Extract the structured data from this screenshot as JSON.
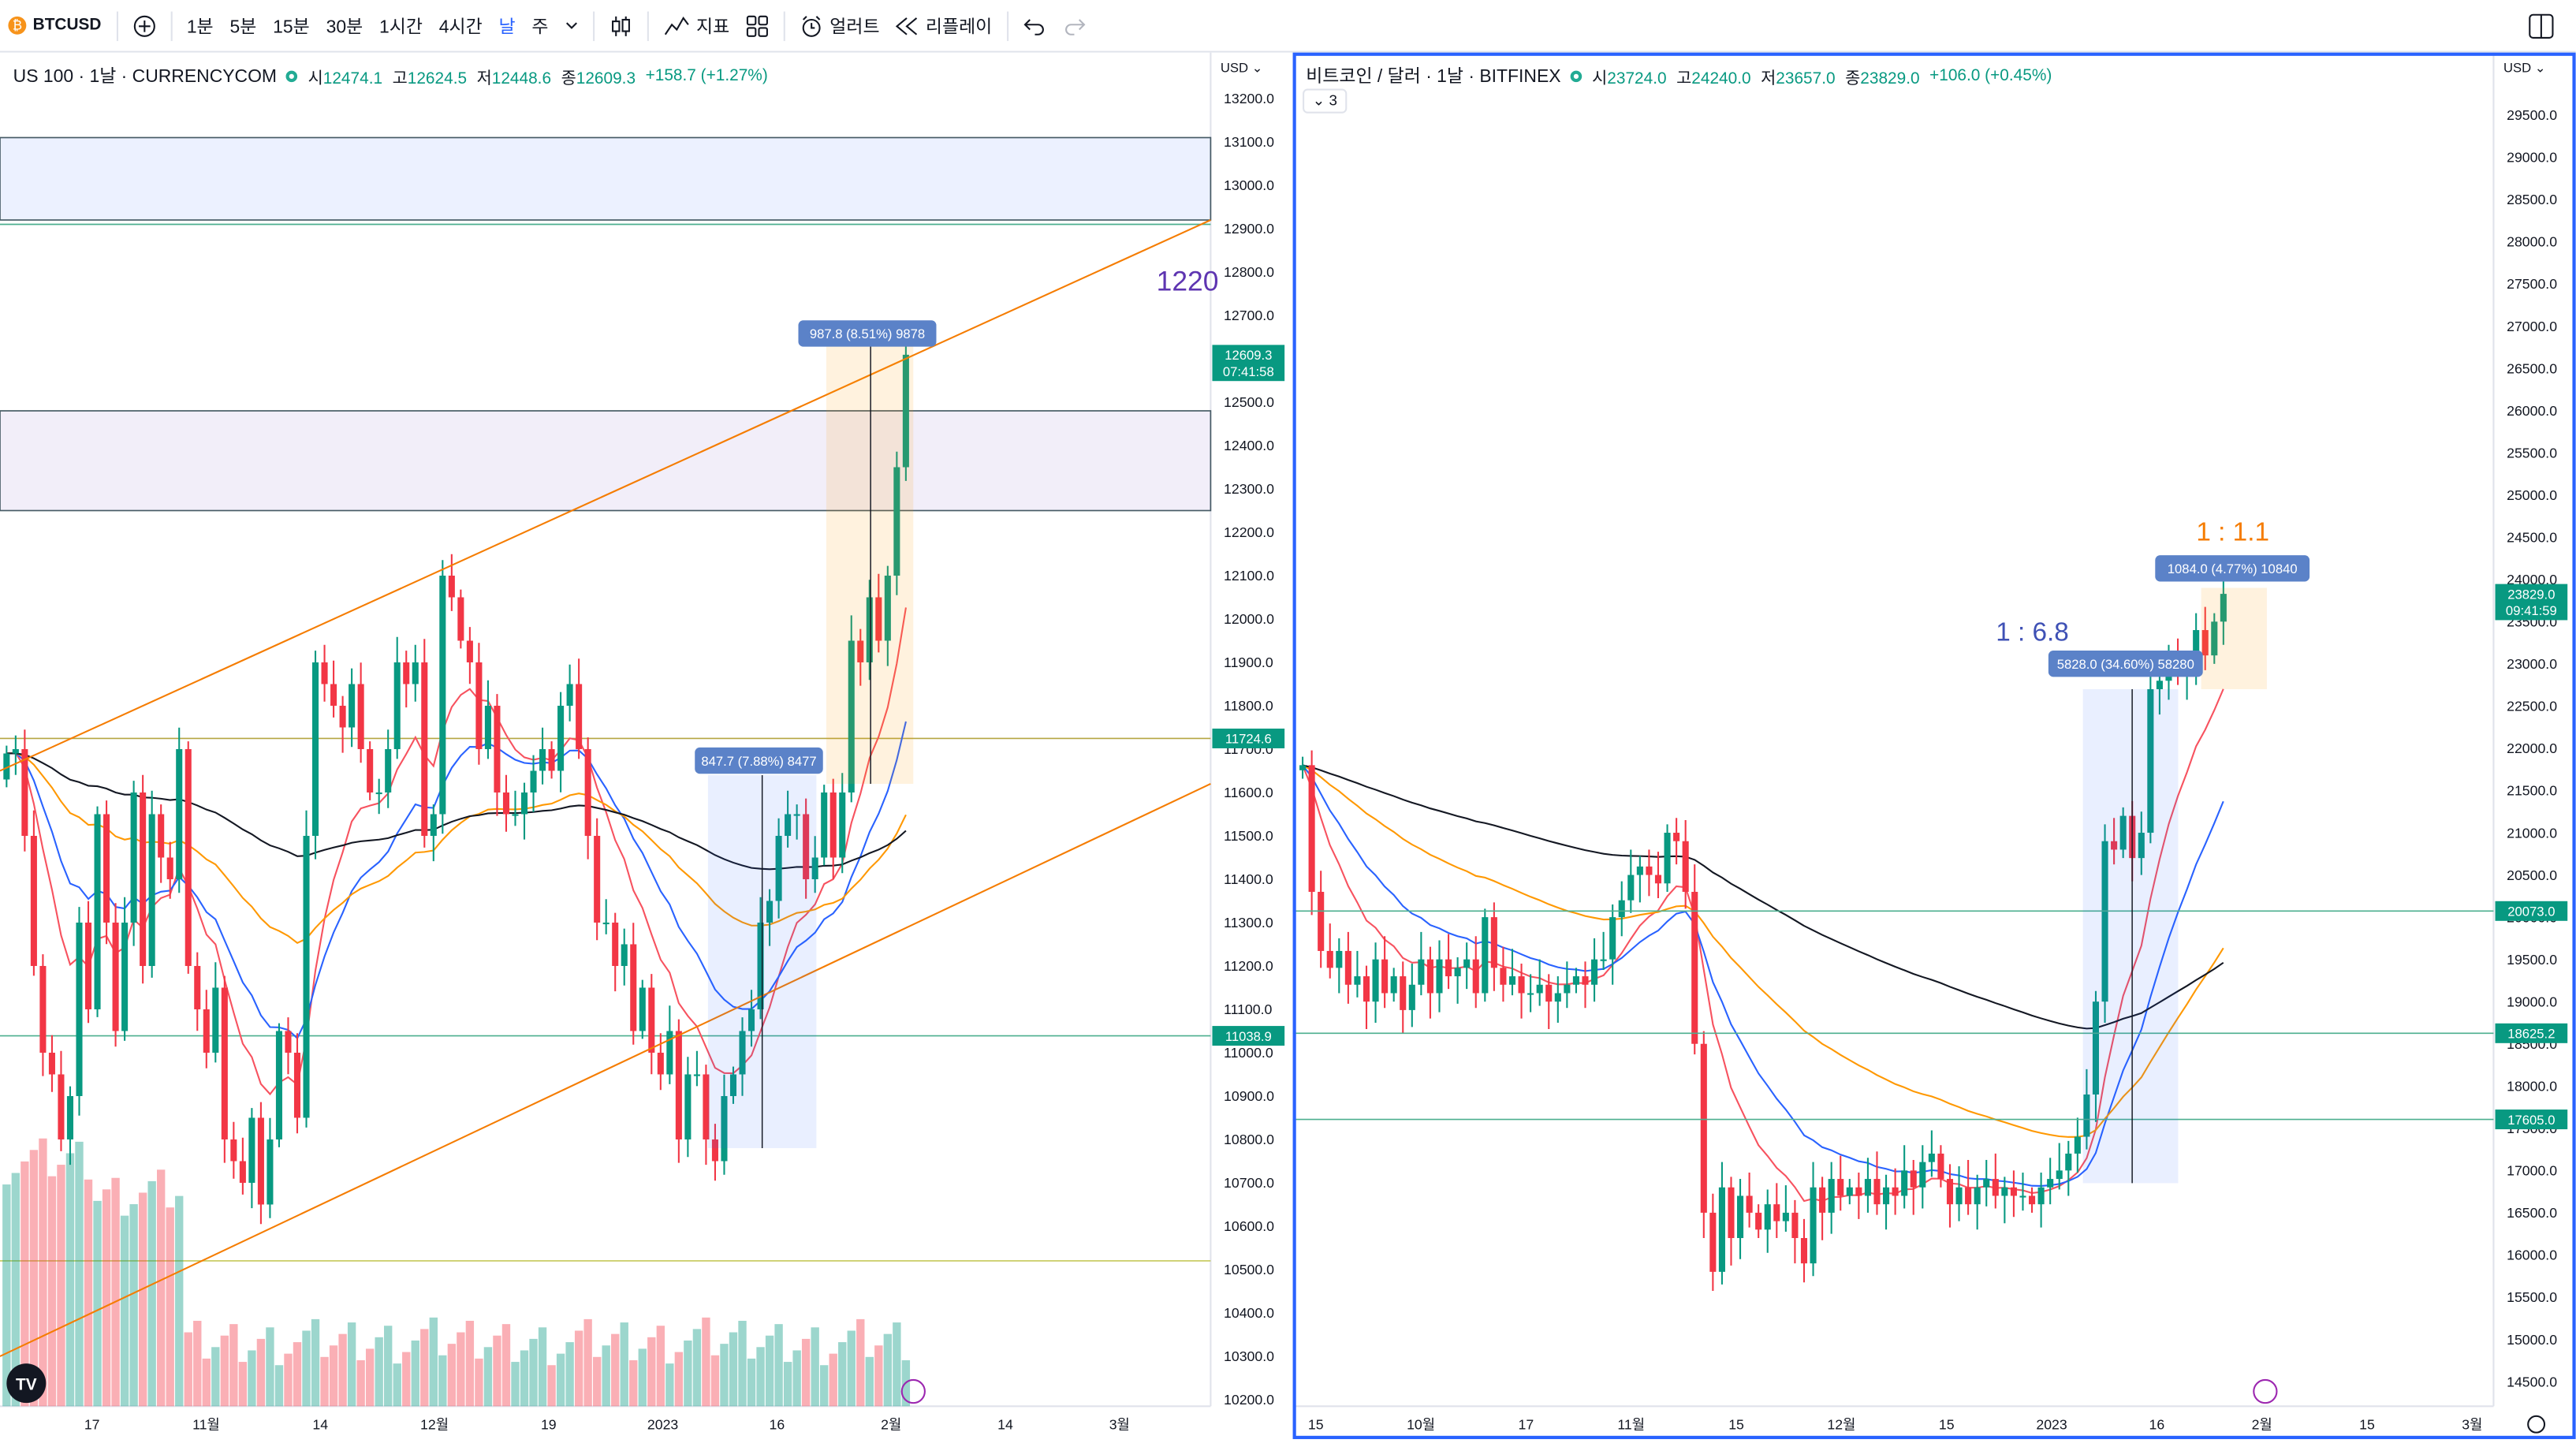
{
  "toolbar": {
    "symbol": "BTCUSD",
    "timeframes": [
      "1분",
      "5분",
      "15분",
      "30분",
      "1시간",
      "4시간",
      "날",
      "주"
    ],
    "active_timeframe": "날",
    "indicators_label": "지표",
    "alert_label": "얼러트",
    "replay_label": "리플레이"
  },
  "left": {
    "title": "US 100 · 1날 · CURRENCYCOM",
    "o_label": "시",
    "o": "12474.1",
    "h_label": "고",
    "h": "12624.5",
    "l_label": "저",
    "l": "12448.6",
    "c_label": "종",
    "c": "12609.3",
    "change": "+158.7 (+1.27%)",
    "currency": "USD",
    "big_label": "1220",
    "price_labels": [
      {
        "value": "12609.3",
        "sub": "07:41:58",
        "color": "#089981"
      },
      {
        "value": "11724.6",
        "sub": "",
        "color": "#089981"
      },
      {
        "value": "11038.9",
        "sub": "",
        "color": "#089981"
      }
    ],
    "measure_boxes": [
      "987.8 (8.51%) 9878",
      "847.7 (7.88%) 8477"
    ],
    "time_labels": [
      "17",
      "11월",
      "14",
      "12월",
      "19",
      "2023",
      "16",
      "2월",
      "14",
      "3월"
    ]
  },
  "right": {
    "title": "비트코인 / 달러 · 1날 · BITFINEX",
    "o_label": "시",
    "o": "23724.0",
    "h_label": "고",
    "h": "24240.0",
    "l_label": "저",
    "l": "23657.0",
    "c_label": "종",
    "c": "23829.0",
    "change": "+106.0 (+0.45%)",
    "currency": "USD",
    "badge": "3",
    "ratio_small": "1 : 6.8",
    "ratio_top": "1 : 1.1",
    "price_labels": [
      {
        "value": "23829.0",
        "sub": "09:41:59",
        "color": "#089981"
      },
      {
        "value": "20073.0",
        "sub": "",
        "color": "#089981"
      },
      {
        "value": "18625.2",
        "sub": "",
        "color": "#089981"
      },
      {
        "value": "17605.0",
        "sub": "",
        "color": "#089981"
      }
    ],
    "measure_boxes": [
      "5828.0 (34.60%) 58280",
      "1084.0 (4.77%) 10840"
    ],
    "time_labels": [
      "15",
      "10월",
      "17",
      "11월",
      "15",
      "12월",
      "15",
      "2023",
      "16",
      "2월",
      "15",
      "3월"
    ]
  },
  "chart_data": [
    {
      "type": "candlestick",
      "title": "US 100 · 1날 · CURRENCYCOM",
      "ylabel": "USD",
      "ylim": [
        10200,
        13200
      ],
      "y_ticks": [
        10200,
        10300,
        10400,
        10500,
        10600,
        10700,
        10800,
        10900,
        11000,
        11100,
        11200,
        11300,
        11400,
        11500,
        11600,
        11700,
        11800,
        11900,
        12000,
        12100,
        12200,
        12300,
        12400,
        12500,
        12600,
        12700,
        12800,
        12900,
        13000,
        13100,
        13200
      ],
      "x_tick_labels": [
        "17",
        "11월",
        "14",
        "12월",
        "19",
        "2023",
        "16",
        "2월",
        "14",
        "3월"
      ],
      "closes": [
        11690,
        11700,
        11500,
        11200,
        11000,
        10950,
        10800,
        10900,
        11300,
        11100,
        11550,
        11300,
        11050,
        11300,
        11600,
        11200,
        11550,
        11450,
        11400,
        11700,
        11200,
        11100,
        11000,
        11150,
        10800,
        10750,
        10700,
        10850,
        10650,
        10800,
        11050,
        11000,
        10850,
        11500,
        11900,
        11850,
        11800,
        11750,
        11850,
        11700,
        11600,
        11600,
        11700,
        11900,
        11850,
        11900,
        11500,
        11550,
        12100,
        12050,
        11950,
        11900,
        11700,
        11800,
        11600,
        11550,
        11550,
        11600,
        11650,
        11700,
        11650,
        11800,
        11850,
        11700,
        11500,
        11300,
        11300,
        11200,
        11250,
        11050,
        11150,
        11000,
        10950,
        11050,
        10800,
        10950,
        10950,
        10800,
        10750,
        10900,
        10950,
        11050,
        11100,
        11300,
        11350,
        11500,
        11550,
        11550,
        11400,
        11450,
        11600,
        11450,
        11600,
        11950,
        11900,
        12050,
        11950,
        12100,
        12350,
        12609.3
      ],
      "horizontal_levels": [
        11724.6,
        11038.9,
        10520,
        12910
      ],
      "zones": [
        [
          12920,
          13110
        ],
        [
          12250,
          12480
        ]
      ],
      "trendlines": "orange ascending channel",
      "measures": [
        "987.8 (8.51%) 9878",
        "847.7 (7.88%) 8477"
      ]
    },
    {
      "type": "candlestick",
      "title": "비트코인 / 달러 · 1날 · BITFINEX",
      "ylabel": "USD",
      "ylim": [
        14500,
        29500
      ],
      "y_ticks": [
        14500,
        15000,
        15500,
        16000,
        16500,
        17000,
        17500,
        18000,
        18500,
        19000,
        19500,
        20000,
        20500,
        21000,
        21500,
        22000,
        22500,
        23000,
        23500,
        24000,
        24500,
        25000,
        25500,
        26000,
        26500,
        27000,
        27500,
        28000,
        28500,
        29000,
        29500
      ],
      "x_tick_labels": [
        "15",
        "10월",
        "17",
        "11월",
        "15",
        "12월",
        "15",
        "2023",
        "16",
        "2월",
        "15",
        "3월"
      ],
      "closes": [
        21800,
        20300,
        19600,
        19400,
        19600,
        19200,
        19300,
        19000,
        19500,
        19100,
        19300,
        18900,
        19200,
        19500,
        19100,
        19500,
        19300,
        19400,
        19500,
        19100,
        20000,
        19400,
        19200,
        19300,
        19100,
        19100,
        19200,
        19000,
        19100,
        19200,
        19300,
        19200,
        19500,
        19500,
        20000,
        20200,
        20500,
        20600,
        20500,
        20400,
        21000,
        20900,
        20300,
        18500,
        16500,
        15800,
        16800,
        16200,
        16700,
        16500,
        16300,
        16600,
        16400,
        16500,
        16200,
        15900,
        16800,
        16500,
        16900,
        16700,
        16800,
        16700,
        16900,
        16600,
        16800,
        16700,
        17000,
        16800,
        17100,
        17200,
        16900,
        16600,
        16800,
        16600,
        16800,
        16900,
        16700,
        16800,
        16700,
        16700,
        16600,
        16800,
        16900,
        17000,
        17200,
        17400,
        17900,
        19000,
        20900,
        20800,
        21200,
        20700,
        21000,
        22700,
        22800,
        23000,
        22900,
        23000,
        23400,
        23100,
        23500,
        23829
      ]
    }
  ]
}
